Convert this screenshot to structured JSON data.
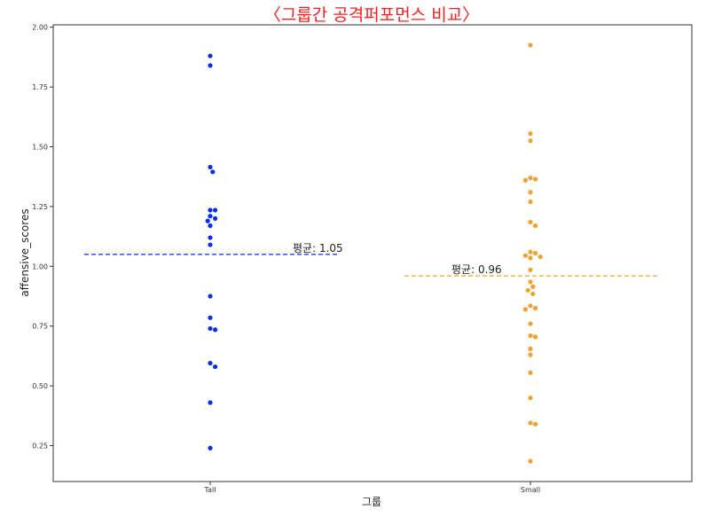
{
  "chart_data": {
    "type": "scatter",
    "title": "〈그룹간 공격퍼포먼스 비교〉",
    "xlabel": "그룹",
    "ylabel": "affensive_scores",
    "categories": [
      "Tall",
      "Small"
    ],
    "ylim": [
      0.1,
      2.01
    ],
    "yticks": [
      0.25,
      0.5,
      0.75,
      1.0,
      1.25,
      1.5,
      1.75,
      2.0
    ],
    "ytick_labels": [
      "0.25",
      "0.50",
      "0.75",
      "1.00",
      "1.25",
      "1.50",
      "1.75",
      "2.00"
    ],
    "grid": false,
    "series": [
      {
        "category": "Tall",
        "color": "#0a2cf0",
        "values": [
          1.88,
          1.84,
          1.415,
          1.395,
          1.235,
          1.235,
          1.21,
          1.2,
          1.19,
          1.17,
          1.12,
          1.09,
          0.875,
          0.785,
          0.74,
          0.735,
          0.595,
          0.58,
          0.43,
          0.24
        ],
        "mean": 1.05,
        "mean_label": "평균: 1.05"
      },
      {
        "category": "Small",
        "color": "#f5a02a",
        "values": [
          1.925,
          1.555,
          1.525,
          1.37,
          1.365,
          1.36,
          1.31,
          1.27,
          1.185,
          1.17,
          1.06,
          1.055,
          1.045,
          1.04,
          1.035,
          0.985,
          0.935,
          0.915,
          0.9,
          0.885,
          0.835,
          0.825,
          0.82,
          0.76,
          0.71,
          0.705,
          0.655,
          0.63,
          0.555,
          0.45,
          0.345,
          0.34,
          0.185
        ],
        "mean": 0.96,
        "mean_label": "평균: 0.96"
      }
    ]
  }
}
